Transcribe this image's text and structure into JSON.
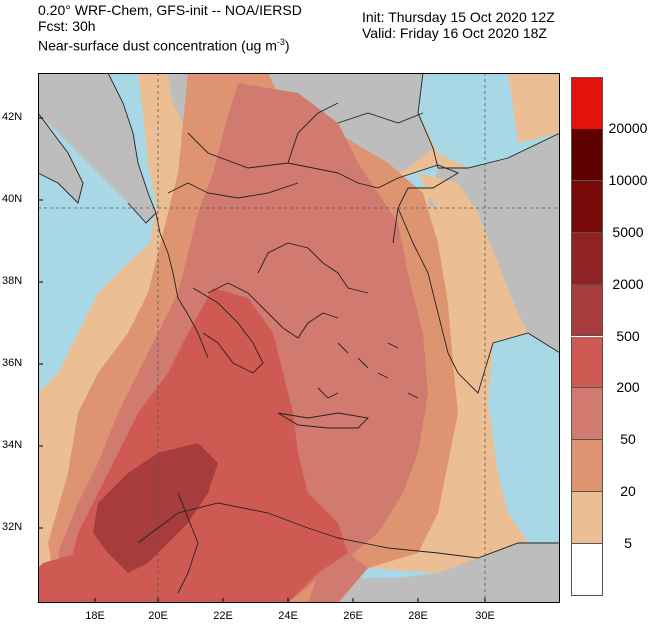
{
  "header": {
    "line1": "0.20° WRF-Chem, GFS-init -- NOA/IERSD",
    "line2": "Fcst: 30h",
    "line3_text": "Near-surface dust concentration (ug m",
    "line3_sup": "-3",
    "line3_end": ")",
    "init": "Init: Thursday 15 Oct 2020   12Z",
    "valid": "Valid: Friday 16 Oct 2020  18Z"
  },
  "axes": {
    "y_labels": [
      "42N",
      "40N",
      "38N",
      "36N",
      "34N",
      "32N"
    ],
    "x_labels": [
      "18E",
      "20E",
      "22E",
      "24E",
      "26E",
      "28E",
      "30E"
    ]
  },
  "colorbar": {
    "levels": [
      "20000",
      "10000",
      "5000",
      "2000",
      "500",
      "200",
      "50",
      "20",
      "5"
    ],
    "colors": [
      "#e3120b",
      "#5c0000",
      "#7a0a0a",
      "#8f2222",
      "#a63c3c",
      "#cf5a53",
      "#d07a70",
      "#df9471",
      "#ebbe94",
      "#ffffff"
    ]
  },
  "map_colors": {
    "sea": "#a8d8e6",
    "land_gray": "#bdbdbd",
    "c5": "#ebbe94",
    "c20": "#df9471",
    "c50": "#d07a70",
    "c200": "#cf5a53",
    "c500": "#a63c3c"
  }
}
